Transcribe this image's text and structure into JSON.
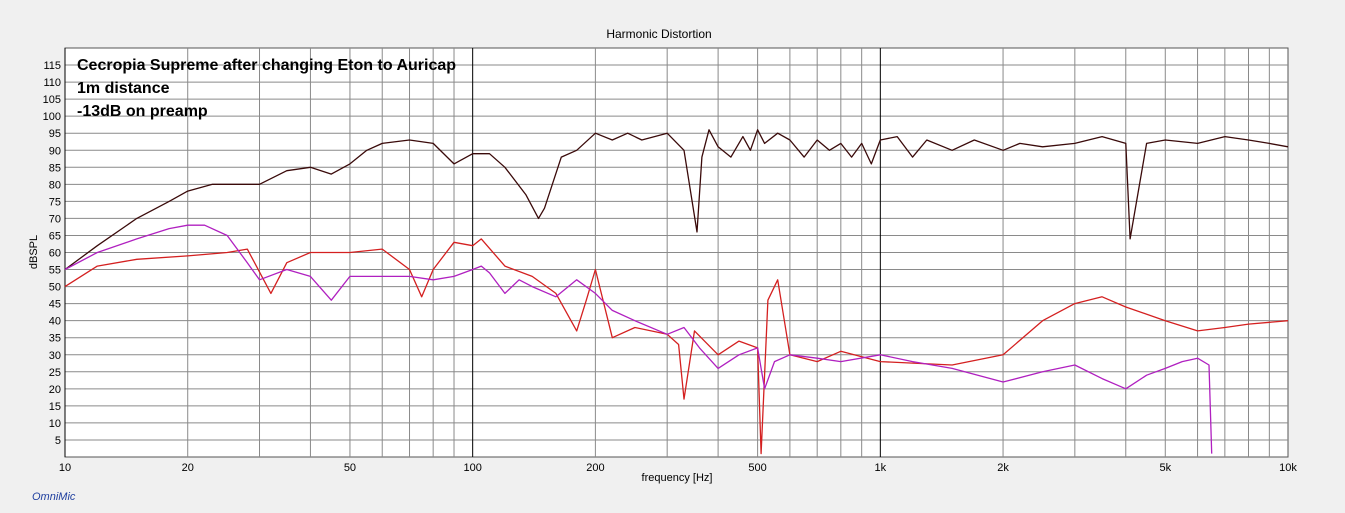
{
  "chart_data": {
    "type": "line",
    "title": "Harmonic Distortion",
    "xlabel": "frequency [Hz]",
    "ylabel": "dBSPL",
    "xscale": "log",
    "xlim": [
      10,
      10000
    ],
    "ylim": [
      0,
      120
    ],
    "grid": true,
    "x_tick_labels": [
      {
        "value": 10,
        "label": "10"
      },
      {
        "value": 20,
        "label": "20"
      },
      {
        "value": 50,
        "label": "50"
      },
      {
        "value": 100,
        "label": "100"
      },
      {
        "value": 200,
        "label": "200"
      },
      {
        "value": 500,
        "label": "500"
      },
      {
        "value": 1000,
        "label": "1k"
      },
      {
        "value": 2000,
        "label": "2k"
      },
      {
        "value": 5000,
        "label": "5k"
      },
      {
        "value": 10000,
        "label": "10k"
      }
    ],
    "y_ticks": [
      5,
      10,
      15,
      20,
      25,
      30,
      35,
      40,
      45,
      50,
      55,
      60,
      65,
      70,
      75,
      80,
      85,
      90,
      95,
      100,
      105,
      110,
      115
    ],
    "annotations": [
      "Cecropia Supreme after changing Eton to Auricap",
      "1m distance",
      "-13dB on preamp"
    ],
    "brand_label": "OmniMic",
    "series": [
      {
        "color": "#3a0a0a",
        "x": [
          10,
          12,
          15,
          18,
          20,
          23,
          25,
          30,
          35,
          40,
          45,
          50,
          55,
          60,
          70,
          80,
          90,
          100,
          110,
          120,
          135,
          145,
          150,
          165,
          180,
          200,
          220,
          240,
          260,
          300,
          330,
          355,
          365,
          380,
          400,
          430,
          460,
          480,
          500,
          520,
          560,
          600,
          650,
          700,
          750,
          800,
          850,
          900,
          950,
          1000,
          1100,
          1200,
          1300,
          1500,
          1700,
          2000,
          2200,
          2500,
          3000,
          3500,
          4000,
          4100,
          4500,
          5000,
          6000,
          7000,
          8000,
          9000,
          10000
        ],
        "y": [
          55,
          62,
          70,
          75,
          78,
          80,
          80,
          80,
          84,
          85,
          83,
          86,
          90,
          92,
          93,
          92,
          86,
          89,
          89,
          85,
          77,
          70,
          73,
          88,
          90,
          95,
          93,
          95,
          93,
          95,
          90,
          66,
          88,
          96,
          91,
          88,
          94,
          90,
          96,
          92,
          95,
          93,
          88,
          93,
          90,
          92,
          88,
          92,
          86,
          93,
          94,
          88,
          93,
          90,
          93,
          90,
          92,
          91,
          92,
          94,
          92,
          64,
          92,
          93,
          92,
          94,
          93,
          92,
          91
        ]
      },
      {
        "color": "#d42020",
        "x": [
          10,
          12,
          15,
          20,
          25,
          28,
          32,
          35,
          40,
          50,
          60,
          70,
          75,
          80,
          90,
          100,
          105,
          120,
          140,
          160,
          180,
          190,
          200,
          220,
          250,
          300,
          320,
          330,
          350,
          400,
          450,
          500,
          510,
          530,
          560,
          600,
          700,
          800,
          1000,
          1500,
          2000,
          2500,
          3000,
          3500,
          4000,
          5000,
          6000,
          7000,
          8000,
          10000
        ],
        "y": [
          50,
          56,
          58,
          59,
          60,
          61,
          48,
          57,
          60,
          60,
          61,
          55,
          47,
          55,
          63,
          62,
          64,
          56,
          53,
          48,
          37,
          46,
          55,
          35,
          38,
          36,
          33,
          17,
          37,
          30,
          34,
          32,
          1,
          46,
          52,
          30,
          28,
          31,
          28,
          27,
          30,
          40,
          45,
          47,
          44,
          40,
          37,
          38,
          39,
          40
        ]
      },
      {
        "color": "#b020c0",
        "x": [
          10,
          12,
          15,
          18,
          20,
          22,
          25,
          28,
          30,
          35,
          40,
          45,
          50,
          60,
          70,
          80,
          90,
          100,
          105,
          110,
          120,
          130,
          140,
          160,
          180,
          200,
          220,
          250,
          300,
          330,
          360,
          400,
          450,
          500,
          520,
          550,
          600,
          700,
          800,
          1000,
          1200,
          1500,
          2000,
          2500,
          3000,
          3500,
          4000,
          4500,
          5000,
          5500,
          6000,
          6400,
          6500
        ],
        "y": [
          55,
          60,
          64,
          67,
          68,
          68,
          65,
          57,
          52,
          55,
          53,
          46,
          53,
          53,
          53,
          52,
          53,
          55,
          56,
          54,
          48,
          52,
          50,
          47,
          52,
          48,
          43,
          40,
          36,
          38,
          32,
          26,
          30,
          32,
          20,
          28,
          30,
          29,
          28,
          30,
          28,
          26,
          22,
          25,
          27,
          23,
          20,
          24,
          26,
          28,
          29,
          27,
          1
        ]
      }
    ]
  }
}
